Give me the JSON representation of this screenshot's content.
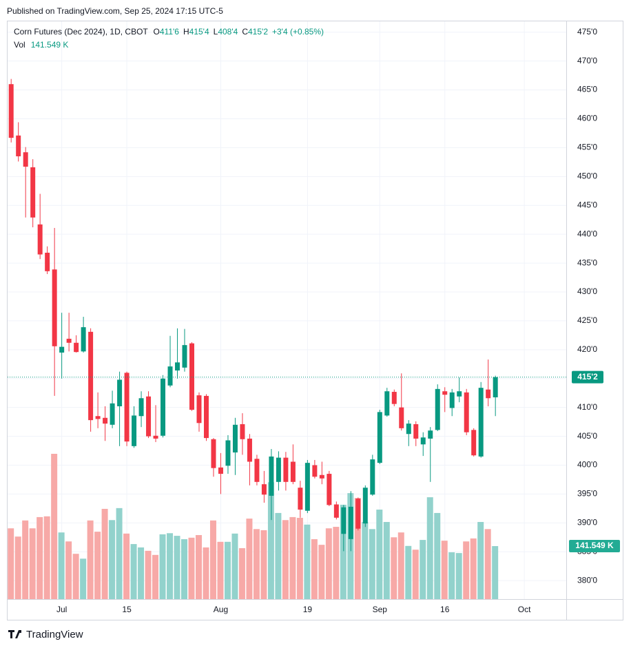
{
  "published": "Published on TradingView.com, Sep 25, 2024 17:15 UTC-5",
  "header": {
    "symbol": "Corn Futures (Dec 2024), 1D, CBOT",
    "ohlc": [
      {
        "label": "O",
        "value": "411'6"
      },
      {
        "label": "H",
        "value": "415'4"
      },
      {
        "label": "L",
        "value": "408'4"
      },
      {
        "label": "C",
        "value": "415'2"
      }
    ],
    "change": "+3'4 (+0.85%)",
    "volume_label": "Vol",
    "volume_value": "141.549 K"
  },
  "footer": "TradingView",
  "chart_data": {
    "type": "candlestick",
    "up_color": "#089981",
    "down_color": "#f23645",
    "up_volume_color": "#92d2cc",
    "down_volume_color": "#f7a9a7",
    "grid": true,
    "xlim": [
      -0.4,
      76.8
    ],
    "xticks": [
      {
        "value": 7,
        "label": "Jul"
      },
      {
        "value": 16,
        "label": "15"
      },
      {
        "value": 29,
        "label": "Aug"
      },
      {
        "value": 41,
        "label": "19"
      },
      {
        "value": 51,
        "label": "Sep"
      },
      {
        "value": 60,
        "label": "16"
      },
      {
        "value": 71,
        "label": "Oct"
      }
    ],
    "ylim": [
      376.8,
      476.4
    ],
    "yticks": [
      {
        "value": 475,
        "label": "475'0"
      },
      {
        "value": 470,
        "label": "470'0"
      },
      {
        "value": 465,
        "label": "465'0"
      },
      {
        "value": 460,
        "label": "460'0"
      },
      {
        "value": 455,
        "label": "455'0"
      },
      {
        "value": 450,
        "label": "450'0"
      },
      {
        "value": 445,
        "label": "445'0"
      },
      {
        "value": 440,
        "label": "440'0"
      },
      {
        "value": 435,
        "label": "435'0"
      },
      {
        "value": 430,
        "label": "430'0"
      },
      {
        "value": 425,
        "label": "425'0"
      },
      {
        "value": 420,
        "label": "420'0"
      },
      {
        "value": 415,
        "label": "415'0"
      },
      {
        "value": 410,
        "label": "410'0"
      },
      {
        "value": 405,
        "label": "405'0"
      },
      {
        "value": 400,
        "label": "400'0"
      },
      {
        "value": 395,
        "label": "395'0"
      },
      {
        "value": 390,
        "label": "390'0"
      },
      {
        "value": 385,
        "label": "385'0"
      },
      {
        "value": 380,
        "label": "380'0"
      }
    ],
    "open": [
      466.0,
      457.1,
      454.2,
      451.6,
      441.7,
      436.8,
      433.9,
      419.5,
      421.9,
      421.2,
      419.7,
      423.1,
      408.5,
      408.2,
      407.0,
      410.2,
      416.0,
      403.3,
      408.5,
      411.9,
      405.1,
      405.1,
      413.8,
      416.4,
      416.9,
      421.1,
      412.1,
      412.0,
      404.5,
      399.6,
      399.9,
      402.2,
      407.1,
      404.6,
      401.1,
      396.7,
      394.7,
      397.1,
      401.3,
      400.6,
      396.1,
      392.1,
      400.0,
      398.3,
      398.5,
      393.2,
      388.1,
      387.2,
      394.2,
      389.9,
      394.9,
      400.4,
      408.6,
      412.7,
      410.0,
      405.4,
      407.1,
      403.6,
      404.6,
      406.1,
      412.8,
      409.9,
      411.9,
      412.6,
      406.1,
      401.5,
      413.1,
      411.75
    ],
    "high": [
      466.9,
      459.4,
      455.1,
      453.0,
      447.0,
      437.9,
      441.1,
      426.4,
      426.4,
      422.5,
      425.7,
      423.7,
      412.6,
      410.2,
      412.9,
      416.2,
      416.2,
      410.2,
      412.8,
      412.8,
      410.4,
      415.6,
      422.4,
      423.7,
      423.6,
      421.3,
      412.6,
      412.3,
      404.7,
      402.1,
      405.2,
      408.2,
      409.0,
      405.4,
      401.8,
      399.0,
      402.8,
      402.4,
      402.3,
      403.6,
      397.3,
      400.9,
      400.9,
      400.6,
      399.0,
      393.7,
      393.1,
      395.5,
      394.4,
      396.5,
      401.8,
      409.6,
      413.4,
      413.1,
      415.9,
      407.8,
      407.6,
      405.7,
      406.6,
      414.0,
      413.5,
      413.2,
      415.2,
      413.2,
      406.4,
      414.4,
      418.3,
      415.5
    ],
    "low": [
      455.9,
      452.6,
      442.9,
      441.2,
      435.7,
      433.1,
      412.0,
      415.0,
      419.7,
      419.5,
      419.5,
      405.8,
      406.4,
      404.2,
      406.4,
      403.3,
      403.3,
      403.0,
      406.6,
      404.7,
      404.0,
      404.8,
      413.5,
      415.0,
      416.2,
      409.4,
      405.8,
      404.2,
      398.0,
      395.0,
      398.5,
      398.3,
      401.8,
      396.5,
      396.5,
      393.5,
      390.5,
      395.6,
      395.6,
      396.7,
      390.9,
      391.7,
      397.7,
      396.7,
      392.9,
      390.6,
      385.1,
      385.1,
      388.7,
      389.3,
      394.7,
      400.2,
      408.4,
      410.2,
      406.0,
      403.3,
      403.3,
      401.6,
      397.1,
      405.9,
      409.2,
      408.5,
      410.9,
      405.2,
      401.5,
      401.3,
      410.2,
      408.5
    ],
    "close": [
      456.7,
      453.5,
      451.7,
      442.9,
      436.5,
      433.6,
      420.6,
      420.5,
      421.2,
      419.6,
      423.9,
      407.8,
      408.0,
      407.2,
      410.7,
      414.8,
      404.1,
      408.6,
      411.6,
      405.0,
      404.6,
      415.0,
      417.1,
      417.8,
      420.8,
      409.6,
      407.3,
      404.7,
      399.5,
      398.5,
      404.3,
      407.0,
      404.5,
      400.6,
      397.1,
      394.9,
      401.5,
      401.3,
      397.1,
      397.1,
      392.3,
      400.4,
      398.0,
      397.7,
      393.1,
      390.9,
      392.7,
      392.8,
      389.0,
      396.1,
      401.0,
      409.2,
      412.8,
      410.6,
      406.4,
      407.2,
      404.6,
      404.8,
      406.0,
      413.2,
      412.2,
      412.6,
      412.8,
      405.7,
      401.7,
      413.4,
      411.6,
      415.25
    ],
    "volume": [
      189000,
      167000,
      210000,
      189000,
      219000,
      221000,
      388000,
      178000,
      154000,
      121000,
      108000,
      210000,
      180000,
      241000,
      211000,
      243000,
      175000,
      147000,
      138000,
      129000,
      118000,
      173000,
      176000,
      169000,
      160000,
      164000,
      171000,
      138000,
      210000,
      153000,
      153000,
      175000,
      136000,
      215000,
      187000,
      184000,
      312000,
      230000,
      211000,
      219000,
      217000,
      199000,
      160000,
      145000,
      189000,
      193000,
      252000,
      283000,
      270000,
      206000,
      187000,
      239000,
      206000,
      165000,
      178000,
      142000,
      132000,
      158000,
      272000,
      230000,
      156000,
      125000,
      123000,
      154000,
      162000,
      206000,
      187000,
      141549
    ],
    "last_price_label": "415'2",
    "last_volume_label": "141.549 K"
  }
}
